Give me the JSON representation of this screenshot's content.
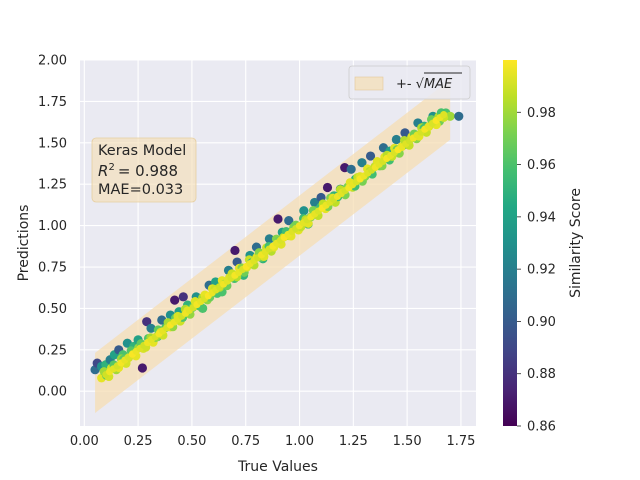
{
  "chart_data": {
    "type": "scatter",
    "title": "",
    "xlabel": "True Values",
    "ylabel": "Predictions",
    "xlim": [
      -0.02,
      1.82
    ],
    "ylim": [
      -0.21,
      2.0
    ],
    "xticks": [
      "0.00",
      "0.25",
      "0.50",
      "0.75",
      "1.00",
      "1.25",
      "1.50",
      "1.75"
    ],
    "yticks": [
      "0.00",
      "0.25",
      "0.50",
      "0.75",
      "1.00",
      "1.25",
      "1.50",
      "1.75",
      "2.00"
    ],
    "grid": true,
    "legend": {
      "placement": "top-right",
      "label_prefix": "+-",
      "label_math": "√MAE"
    },
    "annotation": {
      "line1": "Keras Model",
      "r2_label": "R",
      "r2_value": "= 0.988",
      "mae_text": "MAE=0.033"
    },
    "fit": {
      "x_range": [
        0.05,
        1.7
      ],
      "band_halfwidth": 0.18166
    },
    "colorbar": {
      "label": "Similarity Score",
      "range": [
        0.86,
        1.0
      ],
      "ticks": [
        "0.86",
        "0.88",
        "0.90",
        "0.92",
        "0.94",
        "0.96",
        "0.98"
      ],
      "colormap": "viridis"
    },
    "points": [
      [
        0.05,
        0.13,
        0.91
      ],
      [
        0.06,
        0.17,
        0.89
      ],
      [
        0.08,
        0.15,
        0.93
      ],
      [
        0.1,
        0.16,
        0.95
      ],
      [
        0.12,
        0.19,
        0.92
      ],
      [
        0.14,
        0.22,
        0.94
      ],
      [
        0.16,
        0.25,
        0.9
      ],
      [
        0.18,
        0.22,
        0.96
      ],
      [
        0.2,
        0.29,
        0.93
      ],
      [
        0.23,
        0.27,
        0.95
      ],
      [
        0.27,
        0.14,
        0.87
      ],
      [
        0.29,
        0.42,
        0.88
      ],
      [
        0.25,
        0.31,
        0.94
      ],
      [
        0.31,
        0.38,
        0.92
      ],
      [
        0.34,
        0.33,
        0.96
      ],
      [
        0.36,
        0.43,
        0.91
      ],
      [
        0.4,
        0.46,
        0.93
      ],
      [
        0.42,
        0.55,
        0.87
      ],
      [
        0.44,
        0.48,
        0.94
      ],
      [
        0.46,
        0.57,
        0.88
      ],
      [
        0.48,
        0.52,
        0.95
      ],
      [
        0.52,
        0.57,
        0.93
      ],
      [
        0.55,
        0.5,
        0.96
      ],
      [
        0.58,
        0.64,
        0.91
      ],
      [
        0.61,
        0.66,
        0.94
      ],
      [
        0.64,
        0.6,
        0.96
      ],
      [
        0.67,
        0.73,
        0.92
      ],
      [
        0.7,
        0.85,
        0.87
      ],
      [
        0.71,
        0.78,
        0.9
      ],
      [
        0.74,
        0.7,
        0.95
      ],
      [
        0.77,
        0.82,
        0.93
      ],
      [
        0.8,
        0.87,
        0.91
      ],
      [
        0.83,
        0.8,
        0.95
      ],
      [
        0.86,
        0.92,
        0.92
      ],
      [
        0.9,
        1.04,
        0.87
      ],
      [
        0.92,
        0.96,
        0.94
      ],
      [
        0.95,
        1.03,
        0.91
      ],
      [
        0.98,
        1.0,
        0.96
      ],
      [
        1.02,
        1.09,
        0.93
      ],
      [
        1.04,
        1.01,
        0.95
      ],
      [
        1.07,
        1.14,
        0.92
      ],
      [
        1.1,
        1.17,
        0.9
      ],
      [
        1.13,
        1.23,
        0.87
      ],
      [
        1.16,
        1.18,
        0.95
      ],
      [
        1.19,
        1.22,
        0.93
      ],
      [
        1.21,
        1.35,
        0.87
      ],
      [
        1.24,
        1.34,
        0.91
      ],
      [
        1.26,
        1.28,
        0.95
      ],
      [
        1.29,
        1.38,
        0.92
      ],
      [
        1.33,
        1.42,
        0.9
      ],
      [
        1.36,
        1.37,
        0.96
      ],
      [
        1.39,
        1.47,
        0.91
      ],
      [
        1.42,
        1.45,
        0.94
      ],
      [
        1.45,
        1.52,
        0.92
      ],
      [
        1.49,
        1.56,
        0.9
      ],
      [
        1.52,
        1.53,
        0.96
      ],
      [
        1.55,
        1.62,
        0.92
      ],
      [
        1.58,
        1.6,
        0.95
      ],
      [
        1.62,
        1.66,
        0.93
      ],
      [
        1.65,
        1.63,
        0.97
      ],
      [
        1.68,
        1.68,
        0.96
      ],
      [
        1.7,
        1.66,
        0.98
      ],
      [
        1.74,
        1.66,
        0.91
      ]
    ]
  }
}
